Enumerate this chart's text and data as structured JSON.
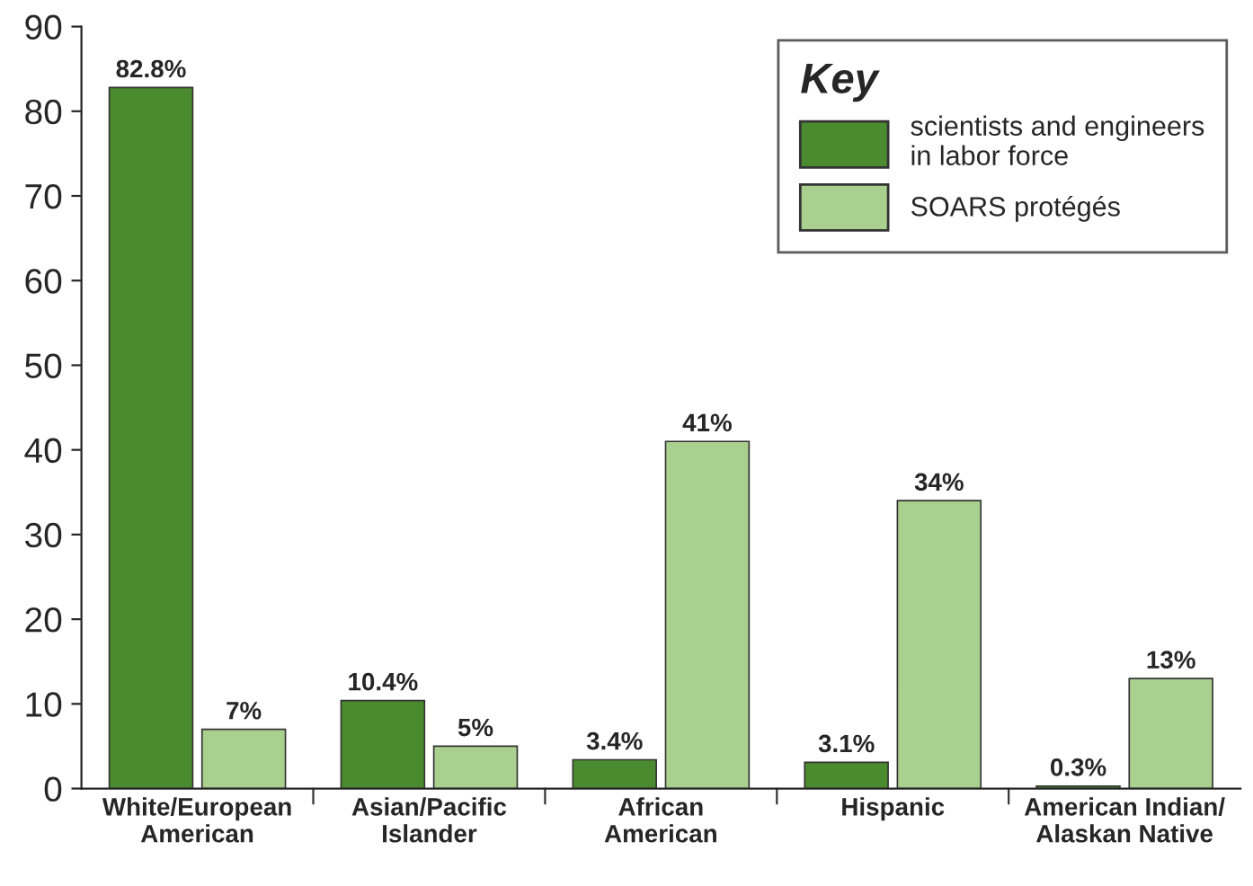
{
  "chart_data": {
    "type": "bar",
    "categories": [
      "White/European\nAmerican",
      "Asian/Pacific\nIslander",
      "African\nAmerican",
      "Hispanic",
      "American Indian/\nAlaskan Native"
    ],
    "series": [
      {
        "name": "scientists and engineers\nin labor force",
        "color": "#4b8b2f",
        "values": [
          82.8,
          10.4,
          3.4,
          3.1,
          0.3
        ],
        "value_labels": [
          "82.8%",
          "10.4%",
          "3.4%",
          "3.1%",
          "0.3%"
        ]
      },
      {
        "name": "SOARS protégés",
        "color": "#a9d08e",
        "values": [
          7,
          5,
          41,
          34,
          13
        ],
        "value_labels": [
          "7%",
          "5%",
          "41%",
          "34%",
          "13%"
        ]
      }
    ],
    "ylim": [
      0,
      90
    ],
    "yticks": [
      0,
      10,
      20,
      30,
      40,
      50,
      60,
      70,
      80,
      90
    ],
    "legend": "top right",
    "legend_title": "Key",
    "grid": false
  }
}
